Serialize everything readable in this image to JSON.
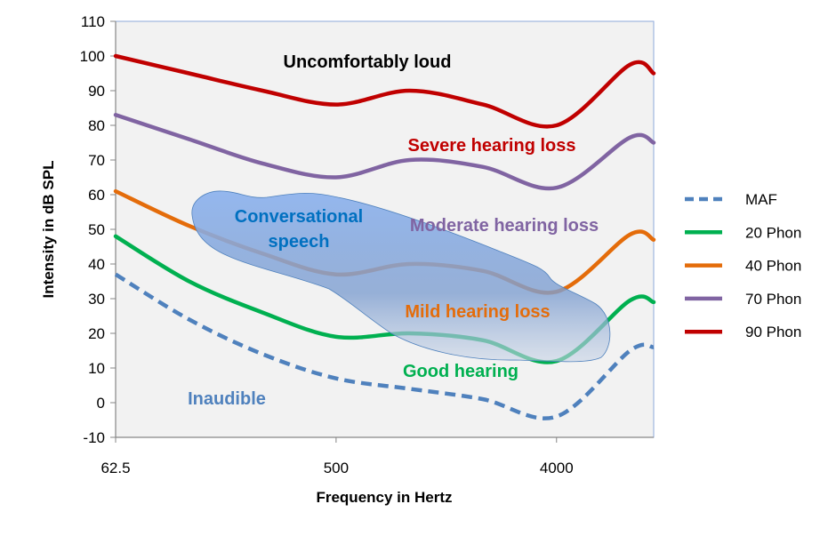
{
  "chart_data": {
    "type": "line",
    "title": "",
    "xlabel": "Frequency in Hertz",
    "ylabel": "Intensity in dB SPL",
    "x_scale": "log2",
    "xlim": [
      62.5,
      10000
    ],
    "ylim": [
      -10,
      110
    ],
    "y_ticks": [
      -10,
      0,
      10,
      20,
      30,
      40,
      50,
      60,
      70,
      80,
      90,
      100,
      110
    ],
    "x_ticks": [
      62.5,
      500,
      4000
    ],
    "x_tick_labels": [
      "62.5",
      "500",
      "4000"
    ],
    "grid": false,
    "legend_position": "right",
    "x": [
      62.5,
      125,
      250,
      500,
      1000,
      2000,
      4000,
      8000,
      10000
    ],
    "series": [
      {
        "name": "MAF",
        "color": "#4f81bd",
        "dash": true,
        "values": [
          37,
          24,
          14,
          7,
          4,
          1,
          -4,
          15,
          16
        ]
      },
      {
        "name": "20 Phon",
        "color": "#00b050",
        "dash": false,
        "values": [
          48,
          35,
          26,
          19,
          20,
          18,
          12,
          29.5,
          29
        ]
      },
      {
        "name": "40 Phon",
        "color": "#e46c0a",
        "dash": false,
        "values": [
          61,
          51,
          43,
          37,
          40,
          38,
          32,
          48.5,
          47
        ]
      },
      {
        "name": "70 Phon",
        "color": "#8064a2",
        "dash": false,
        "values": [
          83,
          76,
          69,
          65,
          70,
          68,
          62,
          76.5,
          75
        ]
      },
      {
        "name": "90 Phon",
        "color": "#c00000",
        "dash": false,
        "values": [
          100,
          95,
          90,
          86,
          90,
          86,
          80,
          97.5,
          95
        ]
      }
    ],
    "annotations": [
      {
        "id": "loud",
        "text": "Uncomfortably loud",
        "color": "#000000"
      },
      {
        "id": "severe",
        "text": "Severe hearing loss",
        "color": "#c00000"
      },
      {
        "id": "moderate",
        "text": "Moderate hearing loss",
        "color": "#8064a2"
      },
      {
        "id": "mild",
        "text": "Mild hearing loss",
        "color": "#e46c0a"
      },
      {
        "id": "good",
        "text": "Good hearing",
        "color": "#00b050"
      },
      {
        "id": "inaudible",
        "text": "Inaudible",
        "color": "#4f81bd"
      },
      {
        "id": "speech1",
        "text": "Conversational",
        "color": "#0070c0"
      },
      {
        "id": "speech2",
        "text": "speech",
        "color": "#0070c0"
      }
    ],
    "plot_background": "#f2f2f2",
    "speech_region_color": "#6f9ee0"
  }
}
